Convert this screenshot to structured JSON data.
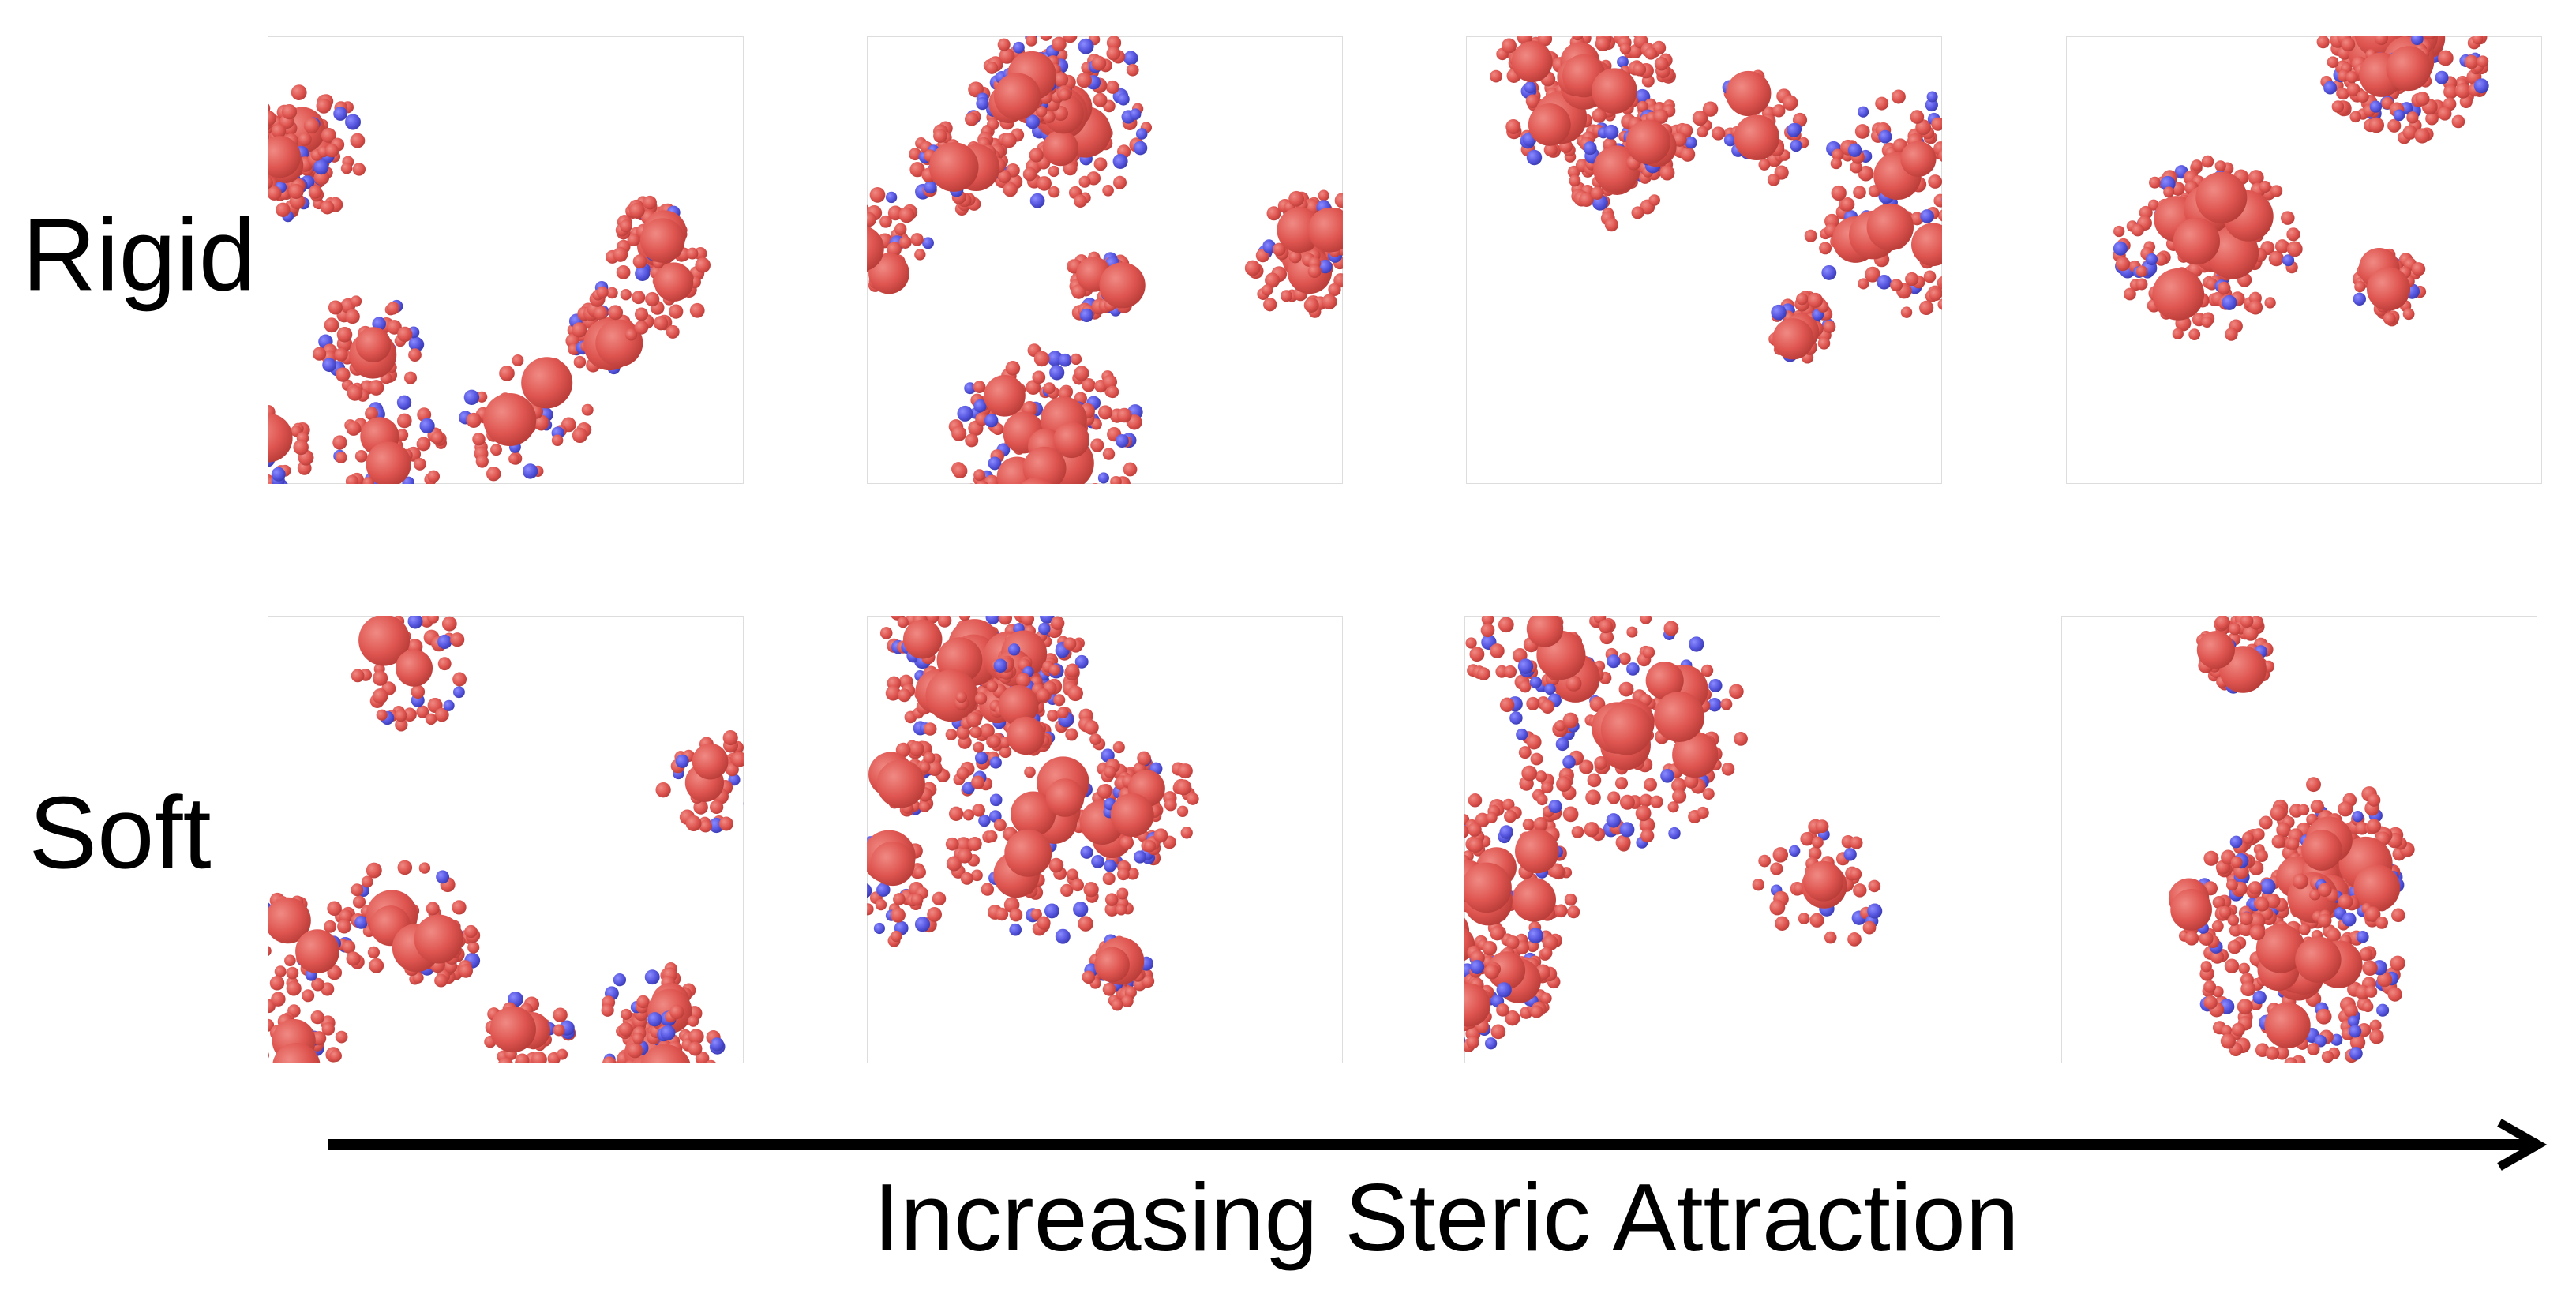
{
  "row_labels": [
    "Rigid",
    "Soft"
  ],
  "axis_label": "Increasing Steric Attraction"
}
